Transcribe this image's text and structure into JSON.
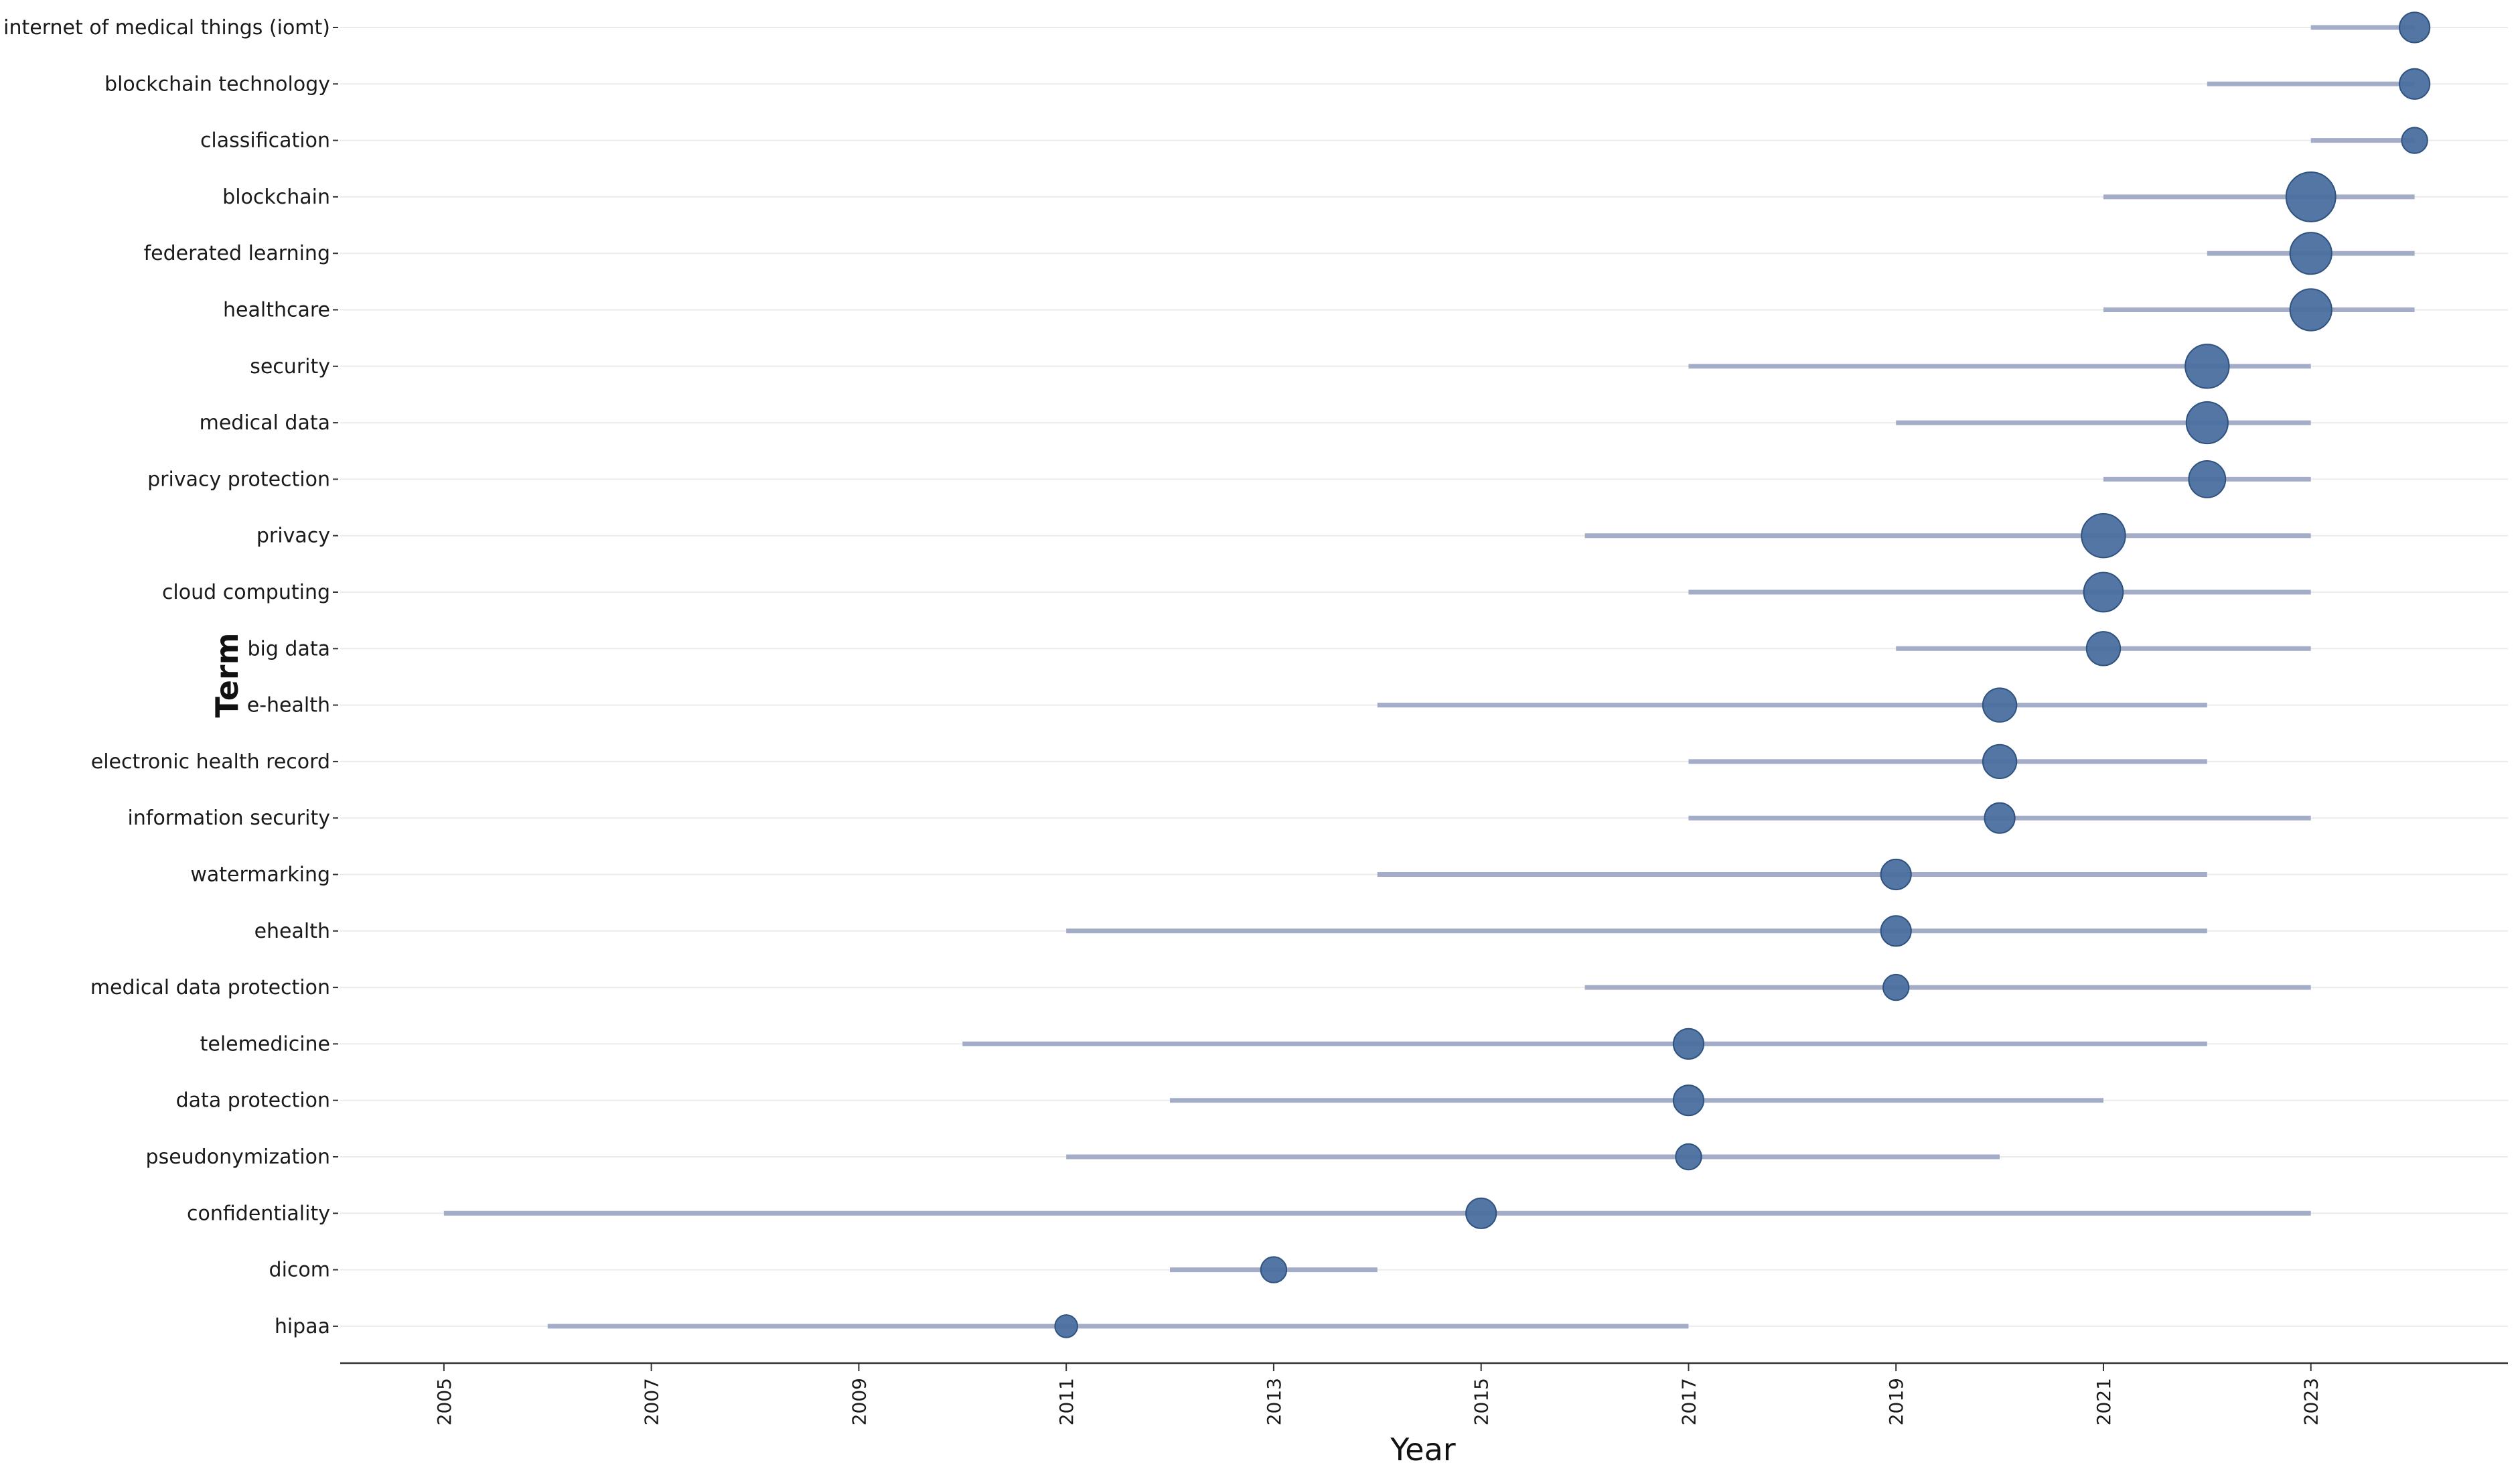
{
  "chart_data": {
    "type": "scatter",
    "xlabel": "Year",
    "ylabel": "Term",
    "xlim": [
      2004.0,
      2024.9
    ],
    "x_ticks": [
      2005,
      2007,
      2009,
      2011,
      2013,
      2015,
      2017,
      2019,
      2021,
      2023
    ],
    "grid": "horizontal",
    "colors": {
      "point": "#4a6fa0",
      "point_stroke": "#2f527f",
      "range": "#a3adc8",
      "grid": "#ebebeb",
      "axis": "#333333"
    },
    "terms": [
      {
        "term": "internet of medical things (iomt)",
        "start": 2023,
        "end": 2024,
        "median": 2024,
        "size": 2
      },
      {
        "term": "blockchain technology",
        "start": 2022,
        "end": 2024,
        "median": 2024,
        "size": 2
      },
      {
        "term": "classification",
        "start": 2023,
        "end": 2024,
        "median": 2024,
        "size": 1
      },
      {
        "term": "blockchain",
        "start": 2021,
        "end": 2024,
        "median": 2023,
        "size": 10
      },
      {
        "term": "federated learning",
        "start": 2022,
        "end": 2024,
        "median": 2023,
        "size": 6
      },
      {
        "term": "healthcare",
        "start": 2021,
        "end": 2024,
        "median": 2023,
        "size": 6
      },
      {
        "term": "security",
        "start": 2017,
        "end": 2023,
        "median": 2022,
        "size": 7
      },
      {
        "term": "medical data",
        "start": 2019,
        "end": 2023,
        "median": 2022,
        "size": 6
      },
      {
        "term": "privacy protection",
        "start": 2021,
        "end": 2023,
        "median": 2022,
        "size": 4
      },
      {
        "term": "privacy",
        "start": 2016,
        "end": 2023,
        "median": 2021,
        "size": 7
      },
      {
        "term": "cloud computing",
        "start": 2017,
        "end": 2023,
        "median": 2021,
        "size": 5
      },
      {
        "term": "big data",
        "start": 2019,
        "end": 2023,
        "median": 2021,
        "size": 3
      },
      {
        "term": "e-health",
        "start": 2014,
        "end": 2022,
        "median": 2020,
        "size": 3
      },
      {
        "term": "electronic health record",
        "start": 2017,
        "end": 2022,
        "median": 2020,
        "size": 3
      },
      {
        "term": "information security",
        "start": 2017,
        "end": 2023,
        "median": 2020,
        "size": 2
      },
      {
        "term": "watermarking",
        "start": 2014,
        "end": 2022,
        "median": 2019,
        "size": 2
      },
      {
        "term": "ehealth",
        "start": 2011,
        "end": 2022,
        "median": 2019,
        "size": 2
      },
      {
        "term": "medical data protection",
        "start": 2016,
        "end": 2023,
        "median": 2019,
        "size": 1
      },
      {
        "term": "telemedicine",
        "start": 2010,
        "end": 2022,
        "median": 2017,
        "size": 2
      },
      {
        "term": "data protection",
        "start": 2012,
        "end": 2021,
        "median": 2017,
        "size": 2
      },
      {
        "term": "pseudonymization",
        "start": 2011,
        "end": 2020,
        "median": 2017,
        "size": 1
      },
      {
        "term": "confidentiality",
        "start": 2005,
        "end": 2023,
        "median": 2015,
        "size": 2
      },
      {
        "term": "dicom",
        "start": 2012,
        "end": 2014,
        "median": 2013,
        "size": 1
      },
      {
        "term": "hipaa",
        "start": 2006,
        "end": 2017,
        "median": 2011,
        "size": 0.5
      }
    ]
  }
}
